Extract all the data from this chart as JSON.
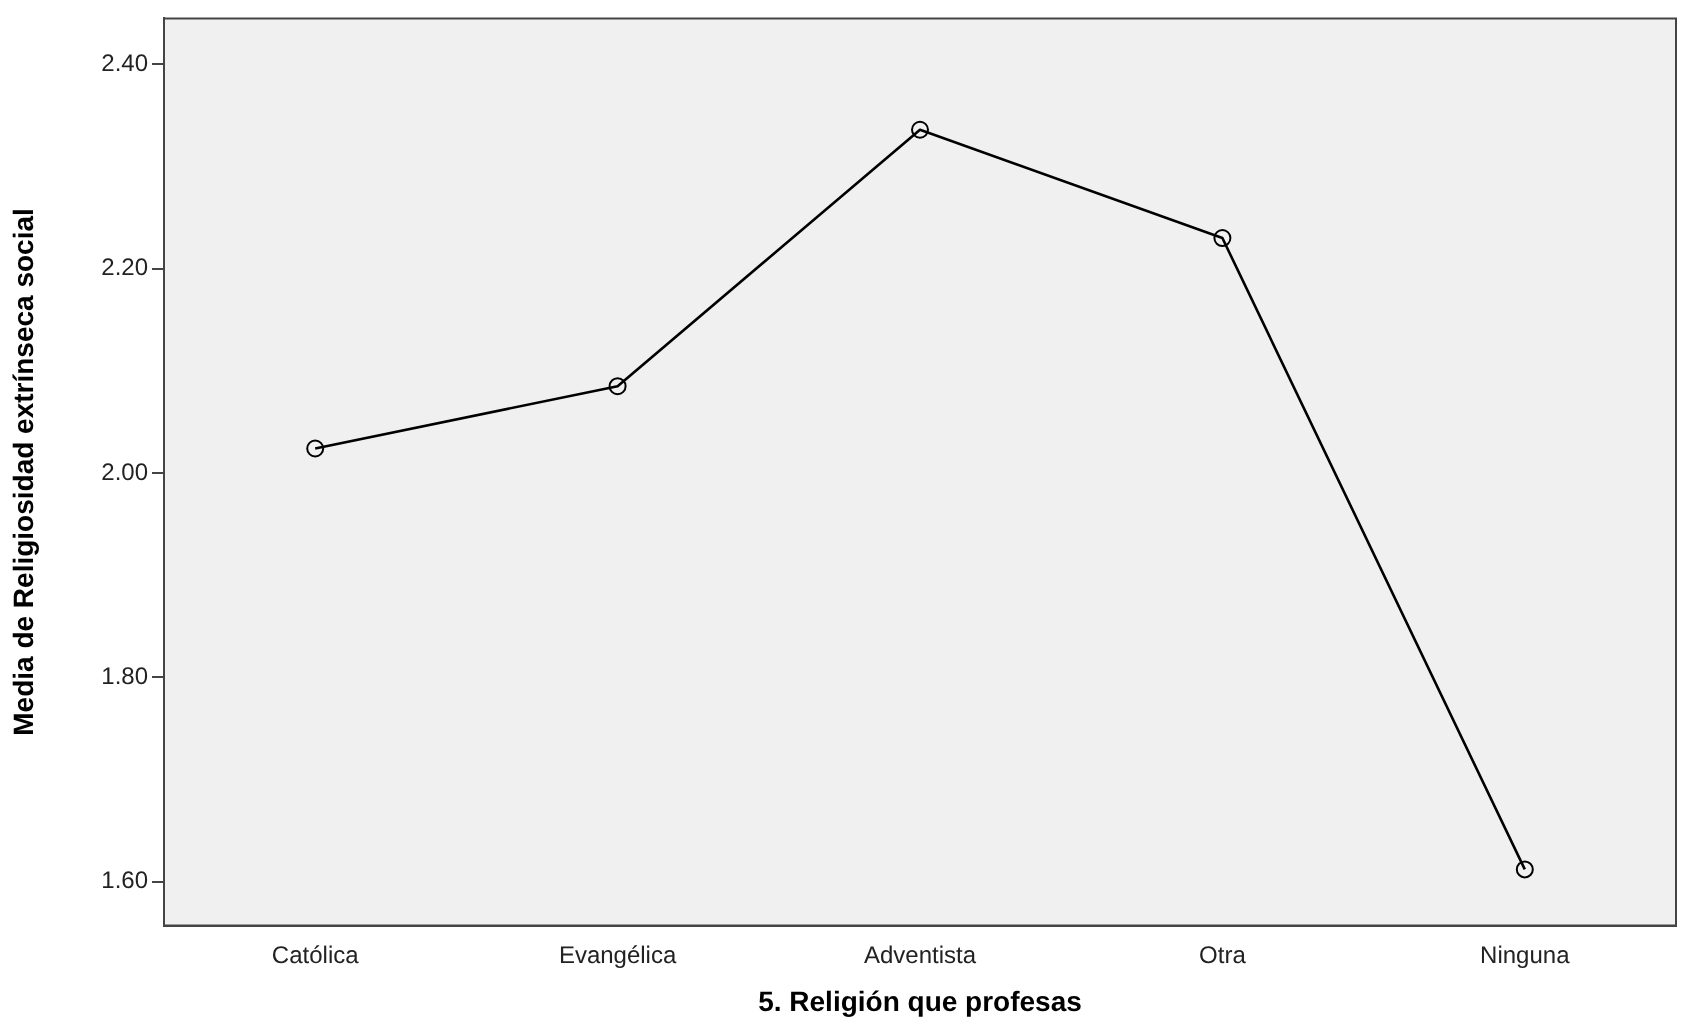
{
  "chart_data": {
    "type": "line",
    "xlabel": "5. Religión que profesas",
    "ylabel": "Media de Religiosidad extrínseca social",
    "categories": [
      "Católica",
      "Evangélica",
      "Adventista",
      "Otra",
      "Ninguna"
    ],
    "series": [
      {
        "color": "#000000",
        "values": [
          2.024,
          2.085,
          2.336,
          2.23,
          1.612
        ]
      }
    ],
    "ylim": [
      1.557,
      2.445
    ],
    "yticks": [
      {
        "value": 1.6,
        "label": "1.60"
      },
      {
        "value": 1.8,
        "label": "1.80"
      },
      {
        "value": 2.0,
        "label": "2.00"
      },
      {
        "value": 2.2,
        "label": "2.20"
      },
      {
        "value": 2.4,
        "label": "2.40"
      }
    ],
    "grid": false,
    "legend": false,
    "marker": "circle",
    "line_style": "solid"
  }
}
